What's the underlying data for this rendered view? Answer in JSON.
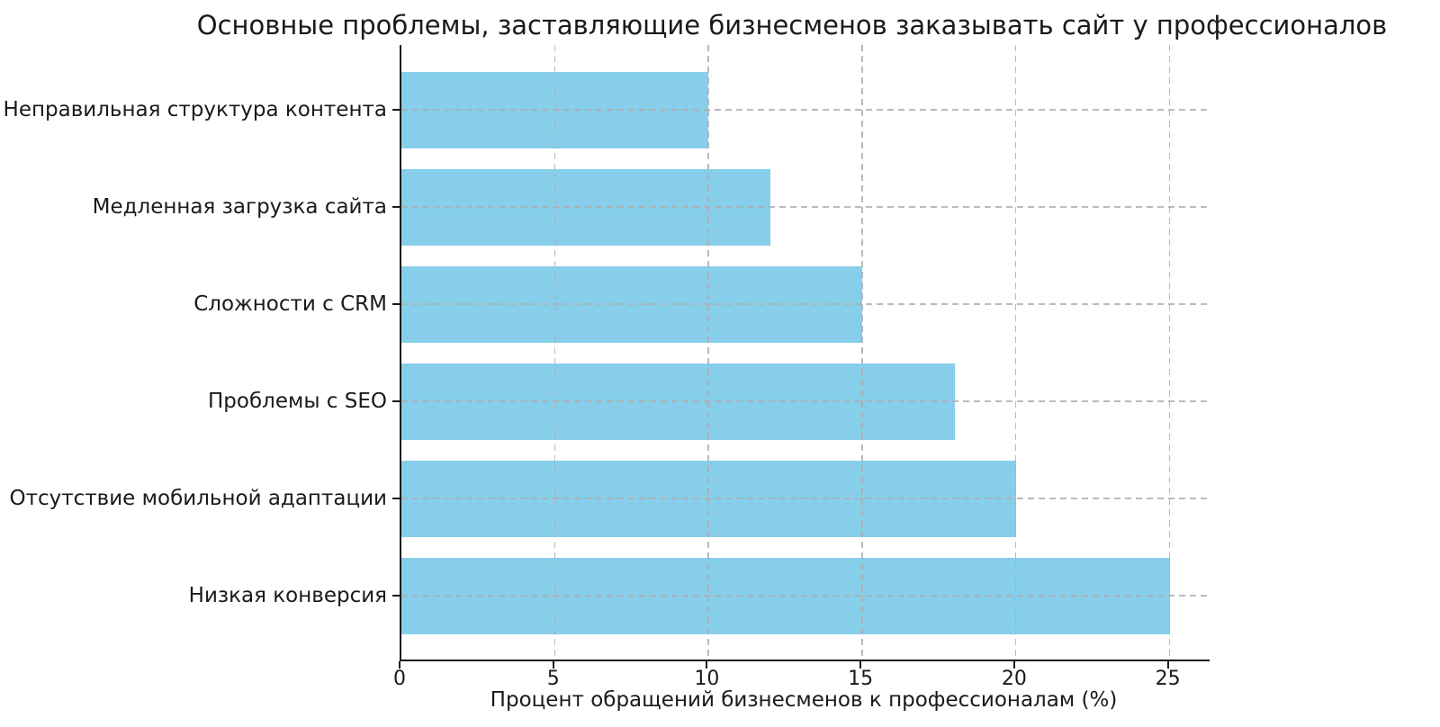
{
  "chart_data": {
    "type": "bar",
    "orientation": "horizontal",
    "title": "Основные проблемы, заставляющие бизнесменов заказывать сайт у профессионалов",
    "xlabel": "Процент обращений бизнесменов к профессионалам (%)",
    "ylabel": "",
    "categories": [
      "Неправильная структура контента",
      "Медленная загрузка сайта",
      "Сложности с CRM",
      "Проблемы с SEO",
      "Отсутствие мобильной адаптации",
      "Низкая конверсия"
    ],
    "values": [
      10,
      12,
      15,
      18,
      20,
      25
    ],
    "xticks": [
      0,
      5,
      10,
      15,
      20,
      25
    ],
    "xlim": [
      0,
      26.3
    ],
    "grid": true,
    "grid_style": "dashed",
    "legend": "none",
    "colors": {
      "bar": "#87CEEB",
      "grid": "#aeaeae",
      "spine": "#1a1a1a",
      "text": "#1a1a1a",
      "background": "#ffffff"
    }
  }
}
